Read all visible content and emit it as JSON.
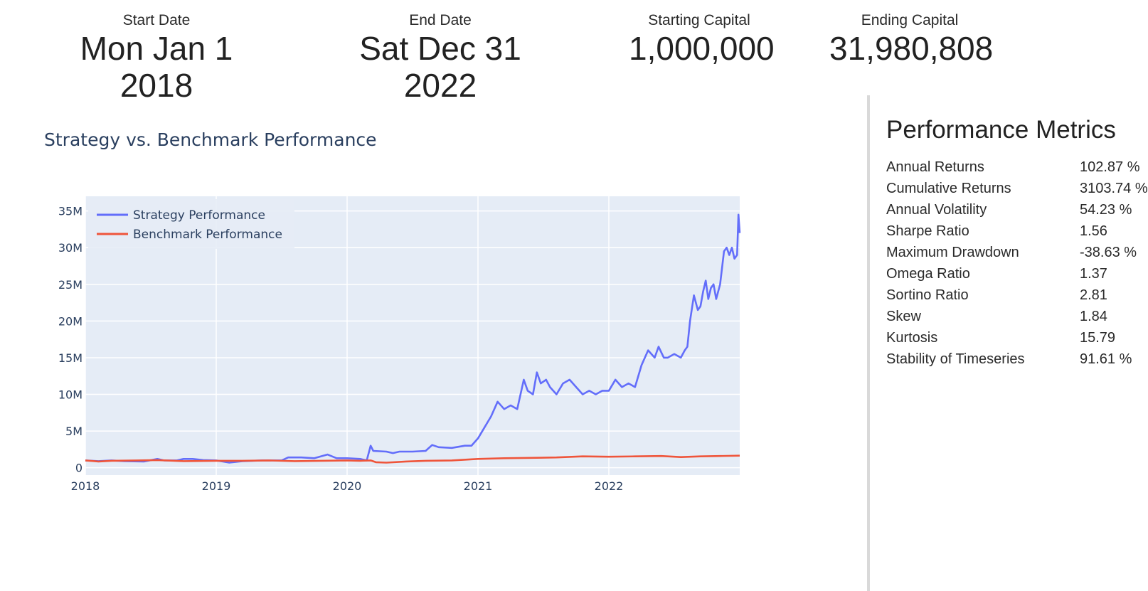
{
  "header": {
    "start_date": {
      "label": "Start Date",
      "value": "Mon Jan 1 2018"
    },
    "end_date": {
      "label": "End Date",
      "value": "Sat Dec 31 2022"
    },
    "starting_capital": {
      "label": "Starting Capital",
      "value": "1,000,000"
    },
    "ending_capital": {
      "label": "Ending Capital",
      "value": "31,980,808"
    }
  },
  "metrics": {
    "title": "Performance Metrics",
    "rows": [
      {
        "name": "Annual Returns",
        "value": "102.87 %"
      },
      {
        "name": "Cumulative Returns",
        "value": "3103.74 %"
      },
      {
        "name": "Annual Volatility",
        "value": "54.23 %"
      },
      {
        "name": "Sharpe Ratio",
        "value": "1.56"
      },
      {
        "name": "Maximum Drawdown",
        "value": "-38.63 %"
      },
      {
        "name": "Omega Ratio",
        "value": "1.37"
      },
      {
        "name": "Sortino Ratio",
        "value": "2.81"
      },
      {
        "name": "Skew",
        "value": "1.84"
      },
      {
        "name": "Kurtosis",
        "value": "15.79"
      },
      {
        "name": "Stability of Timeseries",
        "value": "91.61 %"
      }
    ]
  },
  "colors": {
    "strategy": "#636efa",
    "benchmark": "#ef553b",
    "plot_bg": "#e5ecf6",
    "title": "#2a3f5f"
  },
  "chart_data": {
    "type": "line",
    "title": "Strategy vs. Benchmark Performance",
    "xlabel": "",
    "ylabel": "",
    "xlim": [
      2018.0,
      2023.0
    ],
    "ylim": [
      -1000000,
      37000000
    ],
    "x_ticks": [
      2018,
      2019,
      2020,
      2021,
      2022
    ],
    "x_tick_labels": [
      "2018",
      "2019",
      "2020",
      "2021",
      "2022"
    ],
    "y_ticks": [
      0,
      5000000,
      10000000,
      15000000,
      20000000,
      25000000,
      30000000,
      35000000
    ],
    "y_tick_labels": [
      "0",
      "5M",
      "10M",
      "15M",
      "20M",
      "25M",
      "30M",
      "35M"
    ],
    "legend_position": "top-left",
    "grid": true,
    "series": [
      {
        "name": "Strategy Performance",
        "x": [
          2018.0,
          2018.1,
          2018.2,
          2018.3,
          2018.45,
          2018.55,
          2018.6,
          2018.7,
          2018.75,
          2018.82,
          2018.9,
          2019.0,
          2019.1,
          2019.2,
          2019.35,
          2019.5,
          2019.55,
          2019.65,
          2019.75,
          2019.85,
          2019.92,
          2020.0,
          2020.1,
          2020.15,
          2020.18,
          2020.2,
          2020.3,
          2020.35,
          2020.4,
          2020.5,
          2020.6,
          2020.65,
          2020.7,
          2020.8,
          2020.9,
          2020.95,
          2021.0,
          2021.05,
          2021.1,
          2021.15,
          2021.2,
          2021.25,
          2021.3,
          2021.35,
          2021.38,
          2021.42,
          2021.45,
          2021.48,
          2021.52,
          2021.55,
          2021.6,
          2021.65,
          2021.7,
          2021.75,
          2021.8,
          2021.85,
          2021.9,
          2021.95,
          2022.0,
          2022.05,
          2022.1,
          2022.15,
          2022.2,
          2022.25,
          2022.3,
          2022.35,
          2022.38,
          2022.42,
          2022.45,
          2022.5,
          2022.55,
          2022.58,
          2022.6,
          2022.62,
          2022.65,
          2022.68,
          2022.7,
          2022.72,
          2022.74,
          2022.76,
          2022.78,
          2022.8,
          2022.82,
          2022.85,
          2022.88,
          2022.9,
          2022.92,
          2022.94,
          2022.96,
          2022.98,
          2022.99,
          2023.0
        ],
        "values": [
          1000000,
          900000,
          1000000,
          900000,
          850000,
          1200000,
          1000000,
          1000000,
          1200000,
          1200000,
          1050000,
          1000000,
          700000,
          900000,
          1000000,
          1000000,
          1400000,
          1400000,
          1300000,
          1800000,
          1300000,
          1300000,
          1200000,
          1000000,
          3000000,
          2300000,
          2200000,
          2000000,
          2200000,
          2200000,
          2300000,
          3100000,
          2800000,
          2700000,
          3000000,
          3000000,
          4000000,
          5500000,
          7000000,
          9000000,
          8000000,
          8500000,
          8000000,
          12000000,
          10500000,
          10000000,
          13000000,
          11500000,
          12000000,
          11000000,
          10000000,
          11500000,
          12000000,
          11000000,
          10000000,
          10500000,
          10000000,
          10500000,
          10500000,
          12000000,
          11000000,
          11500000,
          11000000,
          14000000,
          16000000,
          15000000,
          16500000,
          15000000,
          15000000,
          15500000,
          15000000,
          16000000,
          16500000,
          20000000,
          23500000,
          21500000,
          22000000,
          24000000,
          25500000,
          23000000,
          24500000,
          25000000,
          23000000,
          25000000,
          29500000,
          30000000,
          29000000,
          30000000,
          28500000,
          29000000,
          34500000,
          32000000
        ]
      },
      {
        "name": "Benchmark Performance",
        "x": [
          2018.0,
          2018.1,
          2018.2,
          2018.4,
          2018.55,
          2018.75,
          2019.0,
          2019.2,
          2019.4,
          2019.6,
          2019.8,
          2020.0,
          2020.1,
          2020.18,
          2020.22,
          2020.3,
          2020.45,
          2020.6,
          2020.8,
          2021.0,
          2021.2,
          2021.4,
          2021.6,
          2021.8,
          2022.0,
          2022.2,
          2022.4,
          2022.55,
          2022.7,
          2022.85,
          2023.0
        ],
        "values": [
          1000000,
          850000,
          950000,
          1000000,
          1050000,
          900000,
          950000,
          950000,
          1000000,
          900000,
          950000,
          1000000,
          950000,
          1000000,
          750000,
          700000,
          850000,
          950000,
          1000000,
          1200000,
          1300000,
          1350000,
          1400000,
          1550000,
          1500000,
          1550000,
          1600000,
          1450000,
          1550000,
          1600000,
          1650000
        ]
      }
    ]
  }
}
